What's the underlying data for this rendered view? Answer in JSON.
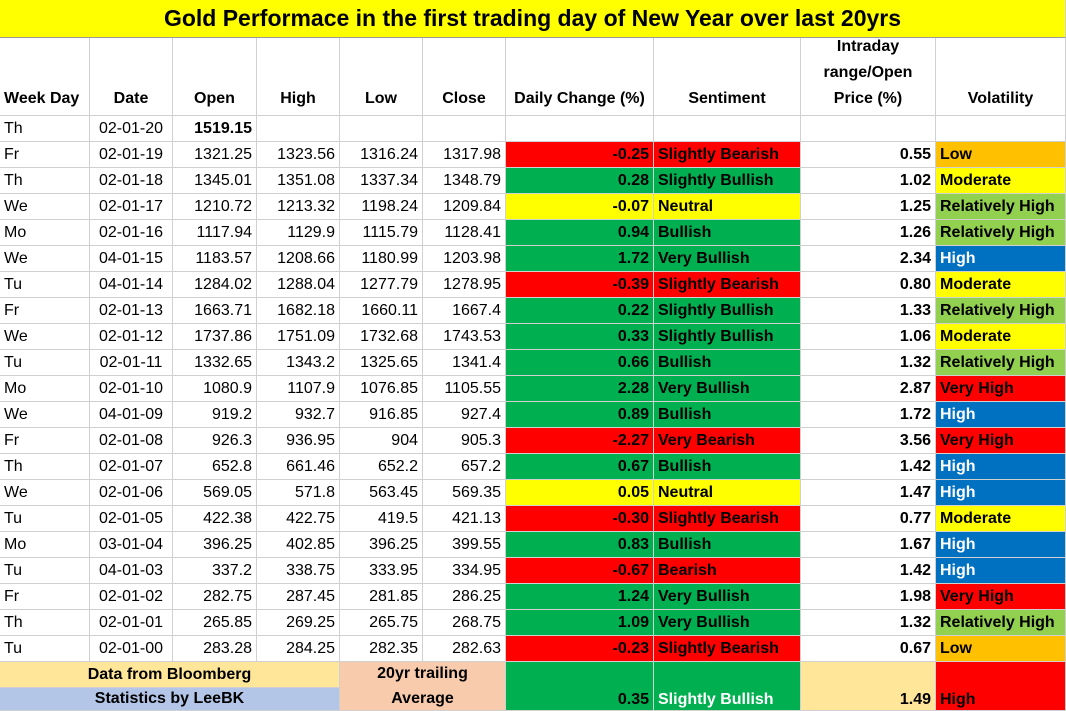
{
  "title": "Gold Performace in the first trading day of New Year over last 20yrs",
  "table": {
    "header": [
      "Week Day",
      "Date",
      "Open",
      "High",
      "Low",
      "Close",
      "Daily Change (%)",
      "Sentiment",
      "Intraday range/Open Price (%)",
      "Volatility"
    ],
    "rows": [
      [
        "Th",
        "02-01-20",
        "1519.15"
      ],
      [
        "Fr",
        "02-01-19",
        "1321.25",
        "1323.56",
        "1316.24",
        "1317.98",
        "-0.25",
        "Slightly Bearish",
        "0.55",
        "Low"
      ],
      [
        "Th",
        "02-01-18",
        "1345.01",
        "1351.08",
        "1337.34",
        "1348.79",
        "0.28",
        "Slightly Bullish",
        "1.02",
        "Moderate"
      ],
      [
        "We",
        "02-01-17",
        "1210.72",
        "1213.32",
        "1198.24",
        "1209.84",
        "-0.07",
        "Neutral",
        "1.25",
        "Relatively High"
      ],
      [
        "Mo",
        "02-01-16",
        "1117.94",
        "1129.9",
        "1115.79",
        "1128.41",
        "0.94",
        "Bullish",
        "1.26",
        "Relatively High"
      ],
      [
        "We",
        "04-01-15",
        "1183.57",
        "1208.66",
        "1180.99",
        "1203.98",
        "1.72",
        "Very Bullish",
        "2.34",
        "High"
      ],
      [
        "Tu",
        "04-01-14",
        "1284.02",
        "1288.04",
        "1277.79",
        "1278.95",
        "-0.39",
        "Slightly Bearish",
        "0.80",
        "Moderate"
      ],
      [
        "Fr",
        "02-01-13",
        "1663.71",
        "1682.18",
        "1660.11",
        "1667.4",
        "0.22",
        "Slightly Bullish",
        "1.33",
        "Relatively High"
      ],
      [
        "We",
        "02-01-12",
        "1737.86",
        "1751.09",
        "1732.68",
        "1743.53",
        "0.33",
        "Slightly Bullish",
        "1.06",
        "Moderate"
      ],
      [
        "Tu",
        "02-01-11",
        "1332.65",
        "1343.2",
        "1325.65",
        "1341.4",
        "0.66",
        "Bullish",
        "1.32",
        "Relatively High"
      ],
      [
        "Mo",
        "02-01-10",
        "1080.9",
        "1107.9",
        "1076.85",
        "1105.55",
        "2.28",
        "Very Bullish",
        "2.87",
        "Very High"
      ],
      [
        "We",
        "04-01-09",
        "919.2",
        "932.7",
        "916.85",
        "927.4",
        "0.89",
        "Bullish",
        "1.72",
        "High"
      ],
      [
        "Fr",
        "02-01-08",
        "926.3",
        "936.95",
        "904",
        "905.3",
        "-2.27",
        "Very Bearish",
        "3.56",
        "Very High"
      ],
      [
        "Th",
        "02-01-07",
        "652.8",
        "661.46",
        "652.2",
        "657.2",
        "0.67",
        "Bullish",
        "1.42",
        "High"
      ],
      [
        "We",
        "02-01-06",
        "569.05",
        "571.8",
        "563.45",
        "569.35",
        "0.05",
        "Neutral",
        "1.47",
        "High"
      ],
      [
        "Tu",
        "02-01-05",
        "422.38",
        "422.75",
        "419.5",
        "421.13",
        "-0.30",
        "Slightly Bearish",
        "0.77",
        "Moderate"
      ],
      [
        "Mo",
        "03-01-04",
        "396.25",
        "402.85",
        "396.25",
        "399.55",
        "0.83",
        "Bullish",
        "1.67",
        "High"
      ],
      [
        "Tu",
        "04-01-03",
        "337.2",
        "338.75",
        "333.95",
        "334.95",
        "-0.67",
        "Bearish",
        "1.42",
        "High"
      ],
      [
        "Fr",
        "02-01-02",
        "282.75",
        "287.45",
        "281.85",
        "286.25",
        "1.24",
        "Very Bullish",
        "1.98",
        "Very High"
      ],
      [
        "Th",
        "02-01-01",
        "265.85",
        "269.25",
        "265.75",
        "268.75",
        "1.09",
        "Very Bullish",
        "1.32",
        "Relatively High"
      ],
      [
        "Tu",
        "02-01-00",
        "283.28",
        "284.25",
        "282.35",
        "282.63",
        "-0.23",
        "Slightly Bearish",
        "0.67",
        "Low"
      ]
    ]
  },
  "sentiment_colors": {
    "Slightly Bearish": "#ff0000",
    "Bearish": "#ff0000",
    "Very Bearish": "#ff0000",
    "Neutral": "#ffff00",
    "Slightly Bullish": "#00b050",
    "Bullish": "#00b050",
    "Very Bullish": "#00b050"
  },
  "volatility_colors": {
    "Low": "#ffc000",
    "Moderate": "#ffff00",
    "Relatively High": "#92d050",
    "High": "#0070c0",
    "Very High": "#ff0000"
  },
  "footer": {
    "source": "Data from Bloomberg",
    "credit": "Statistics by LeeBK",
    "average_label": [
      "20yr trailing",
      "Average"
    ],
    "average_change": "0.35",
    "average_sentiment": "Slightly Bullish",
    "average_range": "1.49",
    "average_volatility": "High"
  }
}
